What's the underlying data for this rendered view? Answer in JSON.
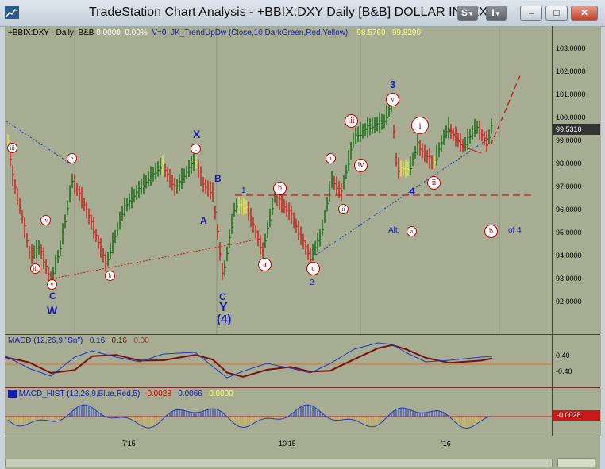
{
  "window": {
    "title": "TradeStation Chart Analysis - +BBIX:DXY Daily [B&B] DOLLAR INDEX",
    "btn_s": "S",
    "btn_menu": "I",
    "btn_min": "–",
    "btn_max": "□",
    "btn_close": "✕"
  },
  "price_header": {
    "symbol": "+BBIX:DXY - Daily",
    "bb": "B&B",
    "v1": "0.0000",
    "v2": "0.00%",
    "v0": "V=0",
    "indicator": "JK_TrendUpDw (Close,10,DarkGreen,Red,Yellow)",
    "val_a": "98.5760",
    "val_b": "99.8290"
  },
  "price_axis": {
    "ticks": [
      "103.0000",
      "102.0000",
      "101.0000",
      "100.0000",
      "99.0000",
      "98.0000",
      "97.0000",
      "96.0000",
      "95.0000",
      "94.0000",
      "93.0000",
      "92.0000"
    ],
    "last": "99.5310"
  },
  "macd_header": {
    "name": "MACD (12,26,9,\"Sn\")",
    "v1": "0.16",
    "v2": "0.16",
    "v3": "0.00"
  },
  "macd_axis": {
    "ticks": [
      "0.40",
      "-0.40"
    ]
  },
  "hist_header": {
    "name": "MACD_HIST (12,26,9,Blue,Red,5)",
    "v1": "-0.0028",
    "v2": "0.0066",
    "v3": "0.0000"
  },
  "hist_axis": {
    "last": "-0.0028"
  },
  "dates": [
    "7'15",
    "10'15",
    "'16"
  ],
  "wave_labels": {
    "C1": "C",
    "W": "W",
    "X": "X",
    "A": "A",
    "B": "B",
    "C2": "C",
    "Y": "Y",
    "four_paren": "(4)",
    "one": "1",
    "two": "2",
    "three": "3",
    "four": "4",
    "alt": "Alt:",
    "of4": "of 4"
  },
  "circles": {
    "iii_left": "iii",
    "iv_left": "iv",
    "v_left": "v",
    "iii_top": "iii",
    "e": "e",
    "b_left": "b",
    "c_x": "c",
    "a_mid": "a",
    "b_mid": "b",
    "c_mid": "c",
    "i_small": "i",
    "ii_small": "ii",
    "iii_r": "iii",
    "iv_r": "iv",
    "v_top": "v",
    "i_big": "i",
    "ii_big": "ii",
    "alt_a": "a",
    "b_right": "b"
  },
  "colors": {
    "bg": "#a6ad92",
    "up": "#0f6b12",
    "down": "#cc1a1a",
    "neutral": "#e6e64a",
    "macd": "#1e3cc8",
    "signal": "#7a0f0f",
    "accent": "#1c1cb4"
  }
}
